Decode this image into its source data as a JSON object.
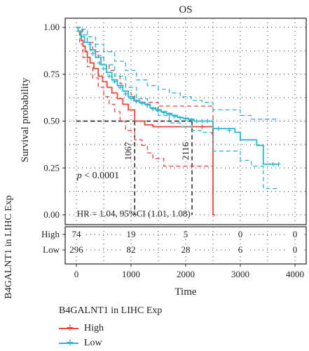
{
  "chart_data": {
    "type": "line",
    "subtype": "kaplan-meier",
    "title": "OS",
    "xlabel": "Time",
    "ylabel": "Survival probability",
    "xlim": [
      0,
      4000
    ],
    "ylim": [
      0,
      1
    ],
    "x_ticks": [
      0,
      1000,
      2000,
      3000,
      4000
    ],
    "y_ticks": [
      "0.00",
      "0.25",
      "0.50",
      "0.75",
      "1.00"
    ],
    "grid": "dotted",
    "pvalue": "p < 0.0001",
    "hr_text": "HR = 1.04, 95%CI (1.01, 1.08)",
    "median_labels": [
      "1067",
      "2116"
    ],
    "median_survival": [
      1067,
      2116
    ],
    "series": [
      {
        "name": "High",
        "color": "#e8473b",
        "curve": [
          [
            0,
            1
          ],
          [
            30,
            0.98
          ],
          [
            60,
            0.96
          ],
          [
            90,
            0.93
          ],
          [
            120,
            0.9
          ],
          [
            160,
            0.87
          ],
          [
            200,
            0.84
          ],
          [
            250,
            0.81
          ],
          [
            320,
            0.78
          ],
          [
            400,
            0.74
          ],
          [
            480,
            0.71
          ],
          [
            560,
            0.68
          ],
          [
            650,
            0.65
          ],
          [
            750,
            0.62
          ],
          [
            850,
            0.59
          ],
          [
            950,
            0.56
          ],
          [
            1067,
            0.5
          ],
          [
            1250,
            0.48
          ],
          [
            1400,
            0.47
          ],
          [
            1600,
            0.47
          ],
          [
            1800,
            0.47
          ],
          [
            2000,
            0.47
          ],
          [
            2116,
            0.47
          ],
          [
            2300,
            0.47
          ],
          [
            2480,
            0.47
          ],
          [
            2500,
            0.0
          ],
          [
            2540,
            0.0
          ]
        ],
        "ci_upper": [
          [
            0,
            1
          ],
          [
            60,
            0.99
          ],
          [
            120,
            0.96
          ],
          [
            200,
            0.92
          ],
          [
            300,
            0.87
          ],
          [
            400,
            0.84
          ],
          [
            500,
            0.8
          ],
          [
            600,
            0.77
          ],
          [
            700,
            0.74
          ],
          [
            800,
            0.7
          ],
          [
            900,
            0.66
          ],
          [
            1000,
            0.64
          ],
          [
            1067,
            0.61
          ],
          [
            1200,
            0.6
          ],
          [
            1400,
            0.6
          ],
          [
            1500,
            0.58
          ],
          [
            1800,
            0.58
          ],
          [
            2000,
            0.58
          ],
          [
            2300,
            0.58
          ],
          [
            2480,
            0.58
          ],
          [
            2500,
            0.41
          ]
        ],
        "ci_lower": [
          [
            0,
            1
          ],
          [
            60,
            0.91
          ],
          [
            120,
            0.84
          ],
          [
            200,
            0.79
          ],
          [
            300,
            0.73
          ],
          [
            400,
            0.68
          ],
          [
            500,
            0.63
          ],
          [
            600,
            0.59
          ],
          [
            700,
            0.55
          ],
          [
            800,
            0.5
          ],
          [
            900,
            0.45
          ],
          [
            1067,
            0.4
          ],
          [
            1200,
            0.37
          ],
          [
            1300,
            0.33
          ],
          [
            1400,
            0.3
          ],
          [
            1500,
            0.3
          ],
          [
            1600,
            0.26
          ],
          [
            2000,
            0.26
          ],
          [
            2200,
            0.26
          ],
          [
            2400,
            0.26
          ],
          [
            2500,
            0.0
          ]
        ],
        "censor": [
          [
            1480,
            0.56
          ],
          [
            2300,
            0.47
          ]
        ],
        "risk": [
          74,
          19,
          5,
          0,
          0
        ]
      },
      {
        "name": "Low",
        "color": "#2cb7cf",
        "curve": [
          [
            0,
            1
          ],
          [
            30,
            0.98
          ],
          [
            80,
            0.95
          ],
          [
            150,
            0.92
          ],
          [
            250,
            0.88
          ],
          [
            350,
            0.84
          ],
          [
            450,
            0.8
          ],
          [
            550,
            0.76
          ],
          [
            650,
            0.72
          ],
          [
            750,
            0.69
          ],
          [
            850,
            0.66
          ],
          [
            950,
            0.63
          ],
          [
            1050,
            0.61
          ],
          [
            1150,
            0.6
          ],
          [
            1250,
            0.59
          ],
          [
            1350,
            0.57
          ],
          [
            1450,
            0.56
          ],
          [
            1550,
            0.55
          ],
          [
            1650,
            0.54
          ],
          [
            1750,
            0.53
          ],
          [
            1850,
            0.52
          ],
          [
            1950,
            0.515
          ],
          [
            2050,
            0.51
          ],
          [
            2150,
            0.5
          ],
          [
            2300,
            0.5
          ],
          [
            2480,
            0.5
          ],
          [
            2500,
            0.46
          ],
          [
            2700,
            0.46
          ],
          [
            2900,
            0.44
          ],
          [
            3000,
            0.4
          ],
          [
            3100,
            0.4
          ],
          [
            3300,
            0.37
          ],
          [
            3420,
            0.27
          ],
          [
            3650,
            0.27
          ],
          [
            3700,
            0.27
          ]
        ],
        "ci_upper": [
          [
            0,
            1
          ],
          [
            100,
            0.99
          ],
          [
            200,
            0.95
          ],
          [
            350,
            0.91
          ],
          [
            500,
            0.87
          ],
          [
            700,
            0.82
          ],
          [
            900,
            0.77
          ],
          [
            1100,
            0.72
          ],
          [
            1300,
            0.69
          ],
          [
            1500,
            0.67
          ],
          [
            1700,
            0.65
          ],
          [
            1900,
            0.63
          ],
          [
            2100,
            0.61
          ],
          [
            2300,
            0.6
          ],
          [
            2480,
            0.6
          ],
          [
            2500,
            0.56
          ],
          [
            2800,
            0.56
          ],
          [
            3000,
            0.53
          ],
          [
            3200,
            0.51
          ],
          [
            3420,
            0.51
          ],
          [
            3700,
            0.51
          ]
        ],
        "ci_lower": [
          [
            0,
            1
          ],
          [
            100,
            0.96
          ],
          [
            200,
            0.91
          ],
          [
            350,
            0.85
          ],
          [
            500,
            0.8
          ],
          [
            700,
            0.74
          ],
          [
            900,
            0.68
          ],
          [
            1100,
            0.62
          ],
          [
            1300,
            0.57
          ],
          [
            1500,
            0.53
          ],
          [
            1700,
            0.49
          ],
          [
            1900,
            0.47
          ],
          [
            2100,
            0.45
          ],
          [
            2300,
            0.44
          ],
          [
            2480,
            0.43
          ],
          [
            2500,
            0.34
          ],
          [
            2800,
            0.34
          ],
          [
            3000,
            0.29
          ],
          [
            3200,
            0.26
          ],
          [
            3420,
            0.14
          ],
          [
            3700,
            0.14
          ]
        ],
        "censor": [
          [
            300,
            0.86
          ],
          [
            420,
            0.81
          ],
          [
            500,
            0.78
          ],
          [
            600,
            0.74
          ],
          [
            700,
            0.71
          ],
          [
            800,
            0.68
          ],
          [
            900,
            0.645
          ],
          [
            1000,
            0.62
          ],
          [
            1100,
            0.605
          ],
          [
            1200,
            0.595
          ],
          [
            1300,
            0.585
          ],
          [
            1400,
            0.565
          ],
          [
            1500,
            0.555
          ],
          [
            1600,
            0.545
          ],
          [
            1700,
            0.535
          ],
          [
            1800,
            0.525
          ],
          [
            1900,
            0.518
          ],
          [
            2000,
            0.512
          ],
          [
            2100,
            0.505
          ],
          [
            2200,
            0.5
          ],
          [
            2300,
            0.5
          ],
          [
            2400,
            0.5
          ],
          [
            2600,
            0.46
          ],
          [
            2800,
            0.45
          ],
          [
            3600,
            0.27
          ],
          [
            3700,
            0.27
          ]
        ],
        "risk": [
          296,
          82,
          28,
          6,
          0
        ]
      }
    ],
    "risk_table": {
      "side_label": "B4GALNT1 in LIHC Exp",
      "rows": [
        "High",
        "Low"
      ]
    },
    "legend": {
      "title": "B4GALNT1 in LIHC Exp",
      "entries": [
        "High",
        "Low"
      ],
      "position": "bottom-left"
    }
  }
}
